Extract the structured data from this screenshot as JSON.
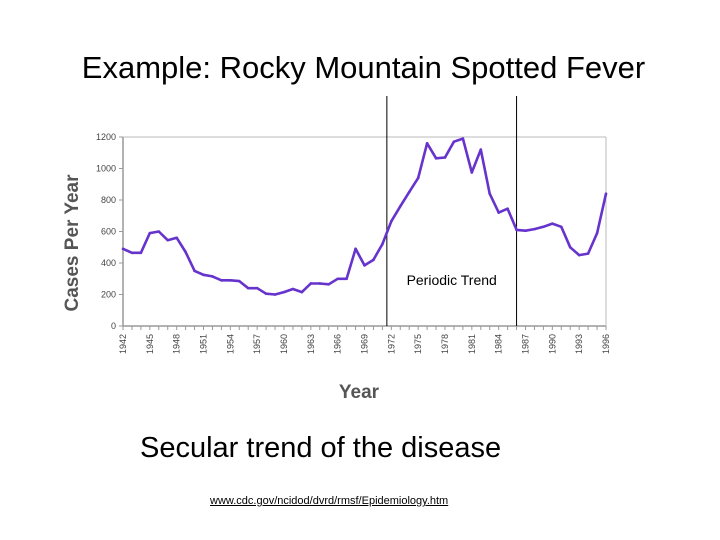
{
  "slide": {
    "title": "Example:  Rocky Mountain Spotted Fever",
    "caption": "Secular trend of the disease",
    "source_link": "www.cdc.gov/ncidod/dvrd/rmsf/Epidemiology.htm"
  },
  "chart_data": {
    "type": "line",
    "title": "",
    "xlabel": "Year",
    "ylabel": "Cases Per Year",
    "xlim": [
      1942,
      1996
    ],
    "ylim": [
      0,
      1200
    ],
    "yticks": [
      0,
      200,
      400,
      600,
      800,
      1000,
      1200
    ],
    "xtick_labels": [
      "1942",
      "1945",
      "1948",
      "1951",
      "1954",
      "1957",
      "1960",
      "1963",
      "1966",
      "1969",
      "1972",
      "1975",
      "1978",
      "1981",
      "1984",
      "1987",
      "1990",
      "1993",
      "1996"
    ],
    "grid": false,
    "color": "#6633cc",
    "annotation": {
      "label": "Periodic Trend",
      "x_start": 1971.5,
      "x_end": 1986
    },
    "series": [
      {
        "x": [
          1942,
          1943,
          1944,
          1945,
          1946,
          1947,
          1948,
          1949,
          1950,
          1951,
          1952,
          1953,
          1954,
          1955,
          1956,
          1957,
          1958,
          1959,
          1960,
          1961,
          1962,
          1963,
          1964,
          1965,
          1966,
          1967,
          1968,
          1969,
          1970,
          1971,
          1972,
          1973,
          1974,
          1975,
          1976,
          1977,
          1978,
          1979,
          1980,
          1981,
          1982,
          1983,
          1984,
          1985,
          1986,
          1987,
          1988,
          1989,
          1990,
          1991,
          1992,
          1993,
          1994,
          1995,
          1996
        ],
        "y": [
          490,
          465,
          465,
          590,
          600,
          545,
          560,
          470,
          350,
          325,
          315,
          290,
          290,
          285,
          240,
          240,
          205,
          200,
          215,
          235,
          215,
          270,
          270,
          265,
          300,
          300,
          490,
          385,
          420,
          520,
          665,
          760,
          850,
          940,
          1160,
          1065,
          1070,
          1170,
          1190,
          975,
          1120,
          840,
          720,
          745,
          610,
          605,
          615,
          630,
          650,
          630,
          500,
          450,
          460,
          590,
          840
        ]
      }
    ]
  }
}
